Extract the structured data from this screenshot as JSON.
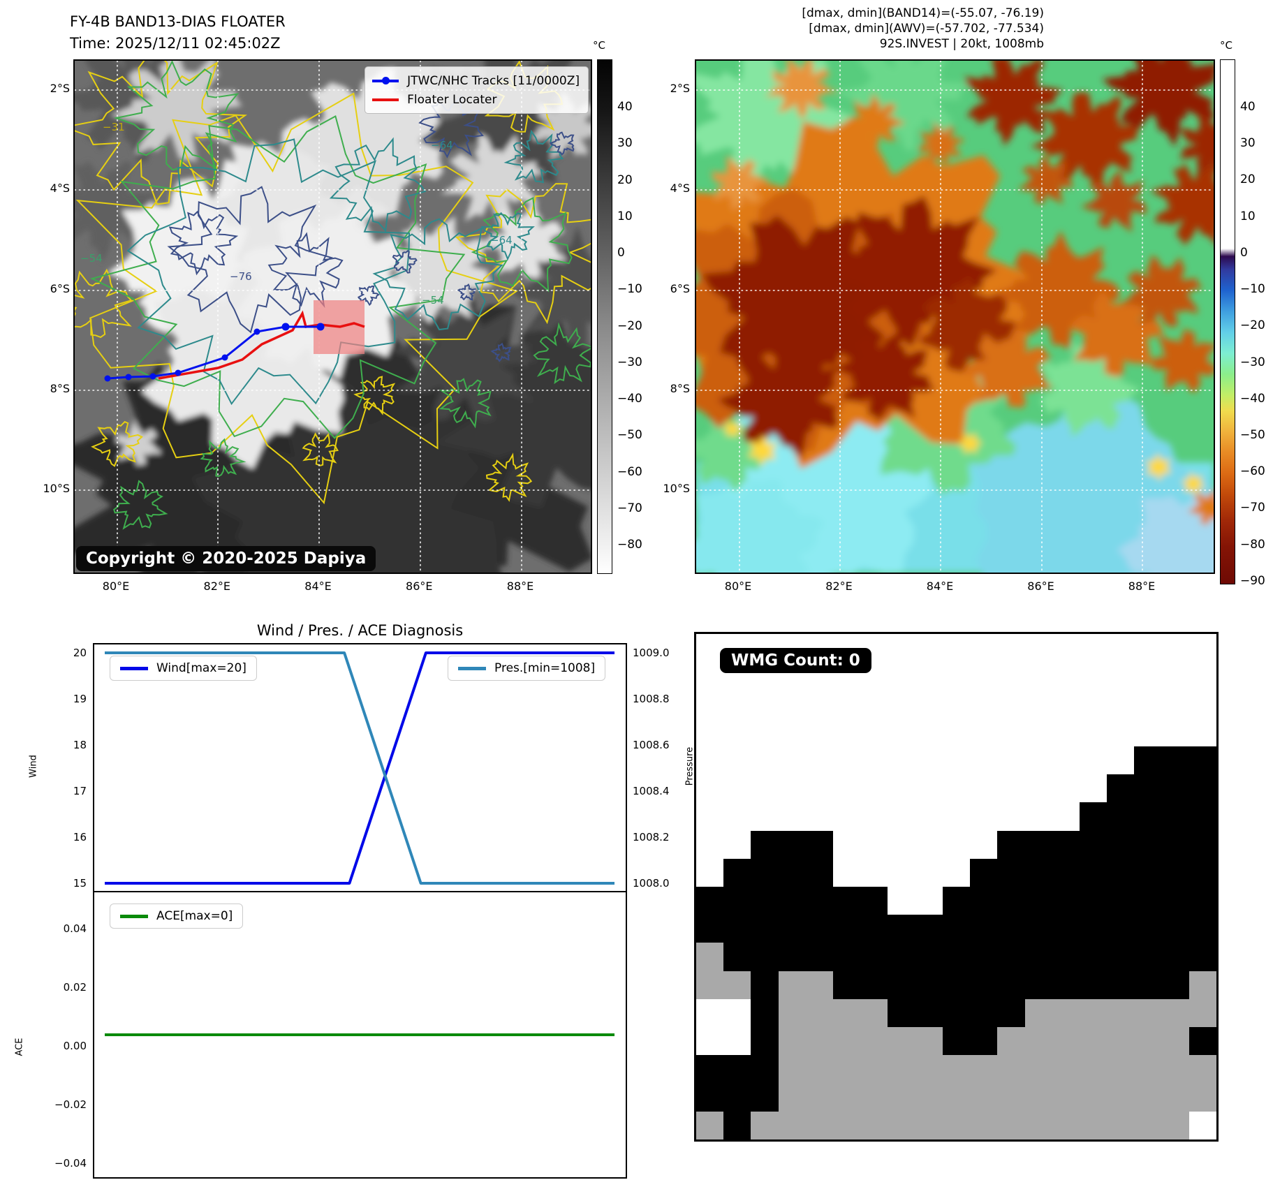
{
  "left_panel": {
    "title": "FY-4B BAND13-DIAS FLOATER",
    "subtitle": "Time: 2025/12/11 02:45:02Z",
    "legend": {
      "tracks_label": "JTWC/NHC Tracks [11/0000Z]",
      "floater_label": "Floater Locater",
      "tracks_color": "#0011ee",
      "floater_color": "#e81010"
    },
    "copyright": "Copyright © 2020-2025 Dapiya",
    "lat_ticks": [
      "2°S",
      "4°S",
      "6°S",
      "8°S",
      "10°S"
    ],
    "lon_ticks": [
      "80°E",
      "82°E",
      "84°E",
      "86°E",
      "88°E"
    ],
    "contour_labels": [
      "−31",
      "−64",
      "−76",
      "−54",
      "−64",
      "−54"
    ],
    "colorbar": {
      "unit": "°C",
      "ticks": [
        "40",
        "30",
        "20",
        "10",
        "0",
        "−10",
        "−20",
        "−30",
        "−40",
        "−50",
        "−60",
        "−70",
        "−80"
      ]
    }
  },
  "right_panel": {
    "header": [
      "[dmax, dmin](BAND14)=(-55.07, -76.19)",
      "[dmax, dmin](AWV)=(-57.702, -77.534)",
      "92S.INVEST | 20kt, 1008mb"
    ],
    "lat_ticks": [
      "2°S",
      "4°S",
      "6°S",
      "8°S",
      "10°S"
    ],
    "lon_ticks": [
      "80°E",
      "82°E",
      "84°E",
      "86°E",
      "88°E"
    ],
    "colorbar": {
      "unit": "°C",
      "ticks": [
        "40",
        "30",
        "20",
        "10",
        "0",
        "−10",
        "−20",
        "−30",
        "−40",
        "−50",
        "−60",
        "−70",
        "−80",
        "−90"
      ]
    }
  },
  "diagnosis": {
    "title": "Wind / Pres. / ACE Diagnosis",
    "wind_axis_label": "Wind",
    "pres_axis_label": "Pressure",
    "ace_axis_label": "ACE",
    "wind_ticks": [
      "20",
      "19",
      "18",
      "17",
      "16",
      "15"
    ],
    "pres_ticks": [
      "1009.0",
      "1008.8",
      "1008.6",
      "1008.4",
      "1008.2",
      "1008.0"
    ],
    "ace_ticks": [
      "0.04",
      "0.02",
      "0.00",
      "−0.02",
      "−0.04"
    ]
  },
  "chart_data": [
    {
      "type": "line",
      "title": "Wind / Pres. / ACE Diagnosis",
      "ylabel_left": "Wind",
      "ylabel_right": "Pressure",
      "ylim_left": [
        15,
        20
      ],
      "ylim_right": [
        1008,
        1009
      ],
      "grid": false,
      "legend_position": "upper left / upper right",
      "series": [
        {
          "name": "Wind[max=20]",
          "axis": "left",
          "color": "#0009e8",
          "x": [
            0,
            0.48,
            0.63,
            1
          ],
          "values": [
            15,
            15,
            20,
            20
          ]
        },
        {
          "name": "Pres.[min=1008]",
          "axis": "right",
          "color": "#2f87b8",
          "x": [
            0,
            0.47,
            0.62,
            1
          ],
          "values": [
            1009,
            1009,
            1008,
            1008
          ]
        }
      ]
    },
    {
      "type": "line",
      "ylabel": "ACE",
      "ylim": [
        -0.05,
        0.05
      ],
      "grid": false,
      "legend_position": "upper left",
      "series": [
        {
          "name": "ACE[max=0]",
          "color": "#0a8a0a",
          "x": [
            0,
            1
          ],
          "values": [
            0,
            0
          ]
        }
      ]
    }
  ],
  "wmg": {
    "label": "WMG Count: 0",
    "cell_colors": {
      ".": "#ffffff",
      "B": "#000000",
      "G": "#a9a9a9"
    },
    "grid": [
      "...................",
      "...................",
      "...................",
      "...................",
      "................BBB",
      "...............BBBB",
      "..............BBBBB",
      "..BBB......BBBBBBBB",
      ".BBBB.....BBBBBBBBB",
      "BBBBBBB..BBBBBBBBBB",
      "BBBBBBBBBBBBBBBBBBB",
      "GBBBBBBBBBBBBBBBBBB",
      "GGBGGBBBBBBBBBBBBBG",
      "..BGGGGBBBBBGGGGGGG",
      "..BGGGGGGBBGGGGGGGB",
      "BBBGGGGGGGGGGGGGGGG",
      "BBBGGGGGGGGGGGGGGGG",
      "GBGGGGGGGGGGGGGGGG."
    ]
  }
}
